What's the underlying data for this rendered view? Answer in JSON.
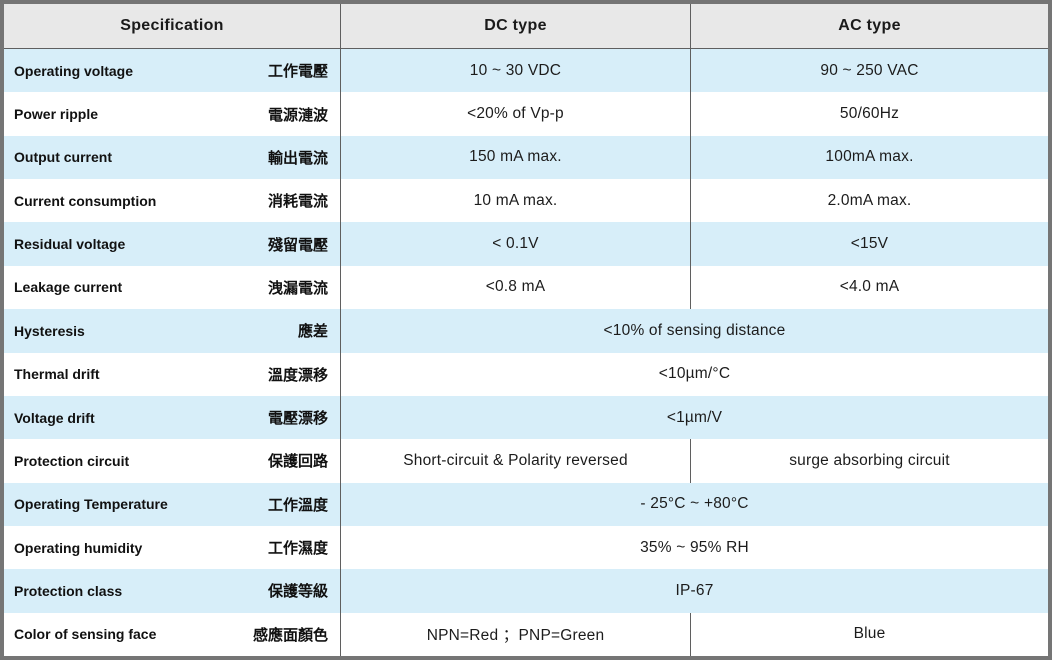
{
  "colors": {
    "outer_border": "#757575",
    "grid_line": "#5f5f5f",
    "header_bg": "#e8e8e8",
    "row_blue": "#d7eef9",
    "row_white": "#ffffff",
    "text": "#1a1a1a"
  },
  "header": {
    "spec": "Specification",
    "dc": "DC type",
    "ac": "AC type"
  },
  "rows": [
    {
      "en": "Operating voltage",
      "zh": "工作電壓",
      "dc": "10 ~ 30 VDC",
      "ac": "90 ~ 250 VAC"
    },
    {
      "en": "Power ripple",
      "zh": "電源漣波",
      "dc": "<20% of Vp-p",
      "ac": "50/60Hz"
    },
    {
      "en": "Output current",
      "zh": "輸出電流",
      "dc": "150 mA max.",
      "ac": "100mA max."
    },
    {
      "en": "Current consumption",
      "zh": "消耗電流",
      "dc": "10 mA max.",
      "ac": "2.0mA max."
    },
    {
      "en": "Residual voltage",
      "zh": "殘留電壓",
      "dc": "< 0.1V",
      "ac": "<15V"
    },
    {
      "en": "Leakage current",
      "zh": "洩漏電流",
      "dc": "<0.8 mA",
      "ac": "<4.0 mA"
    },
    {
      "en": "Hysteresis",
      "zh": "應差",
      "value": "<10% of sensing distance"
    },
    {
      "en": "Thermal drift",
      "zh": "溫度漂移",
      "value": "<10µm/°C"
    },
    {
      "en": "Voltage drift",
      "zh": "電壓漂移",
      "value": "<1µm/V"
    },
    {
      "en": "Protection circuit",
      "zh": "保護回路",
      "dc": "Short-circuit & Polarity reversed",
      "ac": "surge absorbing circuit"
    },
    {
      "en": "Operating Temperature",
      "zh": "工作溫度",
      "value": "- 25°C ~ +80°C"
    },
    {
      "en": "Operating humidity",
      "zh": "工作濕度",
      "value": "35% ~ 95% RH"
    },
    {
      "en": "Protection class",
      "zh": "保護等級",
      "value": "IP-67"
    },
    {
      "en": "Color of sensing face",
      "zh": "感應面顏色",
      "dc": "NPN=Red ；PNP=Green",
      "ac": "Blue"
    }
  ]
}
